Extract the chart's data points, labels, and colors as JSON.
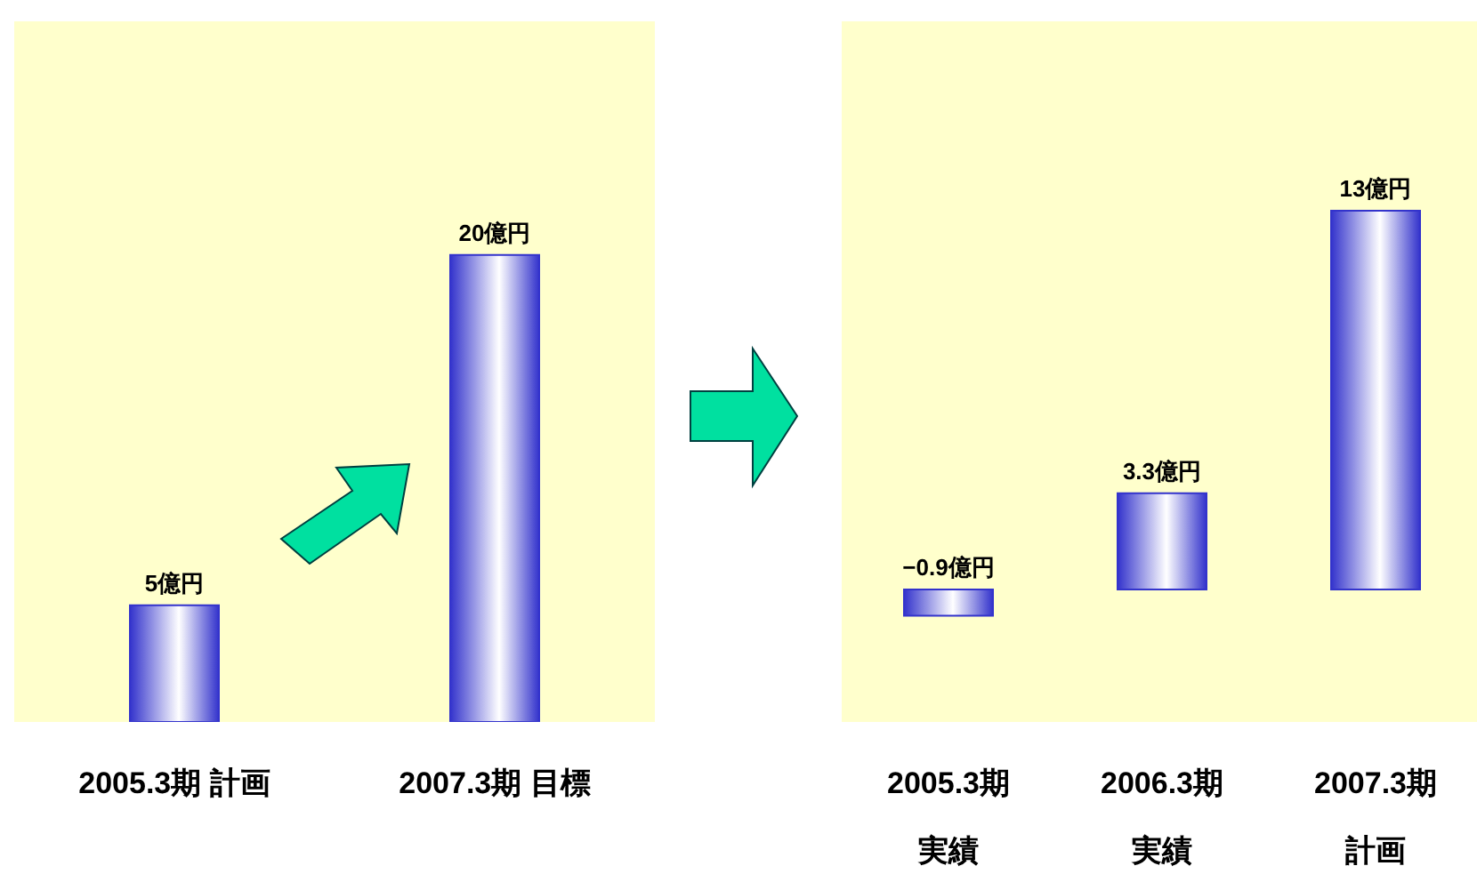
{
  "chart_data": [
    {
      "type": "bar",
      "categories": [
        "2005.3期 計画",
        "2007.3期 目標"
      ],
      "values": [
        5,
        20
      ],
      "value_labels": [
        "5億円",
        "20億円"
      ],
      "color": "#3333cc"
    },
    {
      "type": "bar",
      "categories": [
        "2005.3期実績",
        "2006.3期実績",
        "2007.3期計画"
      ],
      "values": [
        -0.9,
        3.3,
        13
      ],
      "value_labels": [
        "−0.9億円",
        "3.3億円",
        "13億円"
      ],
      "color": "#3333cc"
    }
  ]
}
